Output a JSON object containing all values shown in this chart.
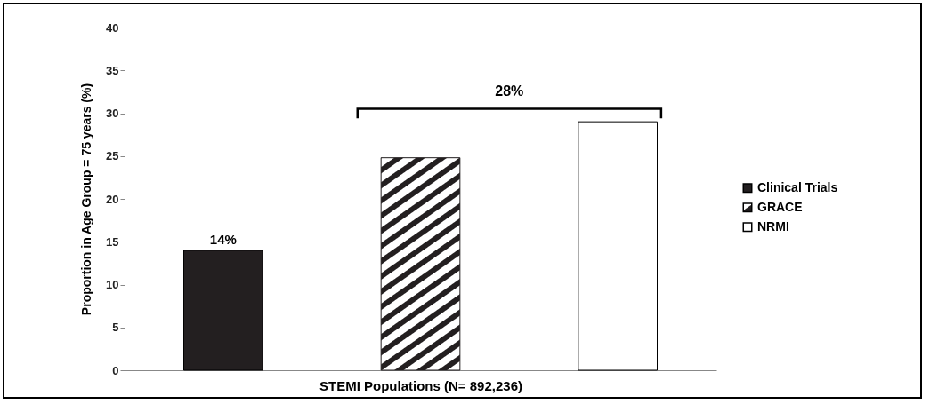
{
  "chart_data": {
    "type": "bar",
    "categories": [
      null,
      null,
      null
    ],
    "xlabel": "STEMI Populations (N= 892,236)",
    "ylabel": "Proportion in Age Group = 75 years (%)",
    "series": [
      {
        "name": "Clinical Trials",
        "color": "#231f20",
        "values": [
          14,
          null,
          null
        ],
        "value_labels": [
          "14%",
          null,
          null
        ]
      },
      {
        "name": "GRACE",
        "color": "#231f20",
        "values": [
          null,
          24.8,
          null
        ]
      },
      {
        "name": "NRMI",
        "color": "#ffffff",
        "values": [
          null,
          null,
          29
        ]
      }
    ],
    "ylim": [
      0,
      40
    ],
    "yticks": [
      0,
      5,
      10,
      15,
      20,
      25,
      30,
      35,
      40
    ],
    "legend": "right",
    "grid": false,
    "annotations": [
      "28%"
    ]
  }
}
